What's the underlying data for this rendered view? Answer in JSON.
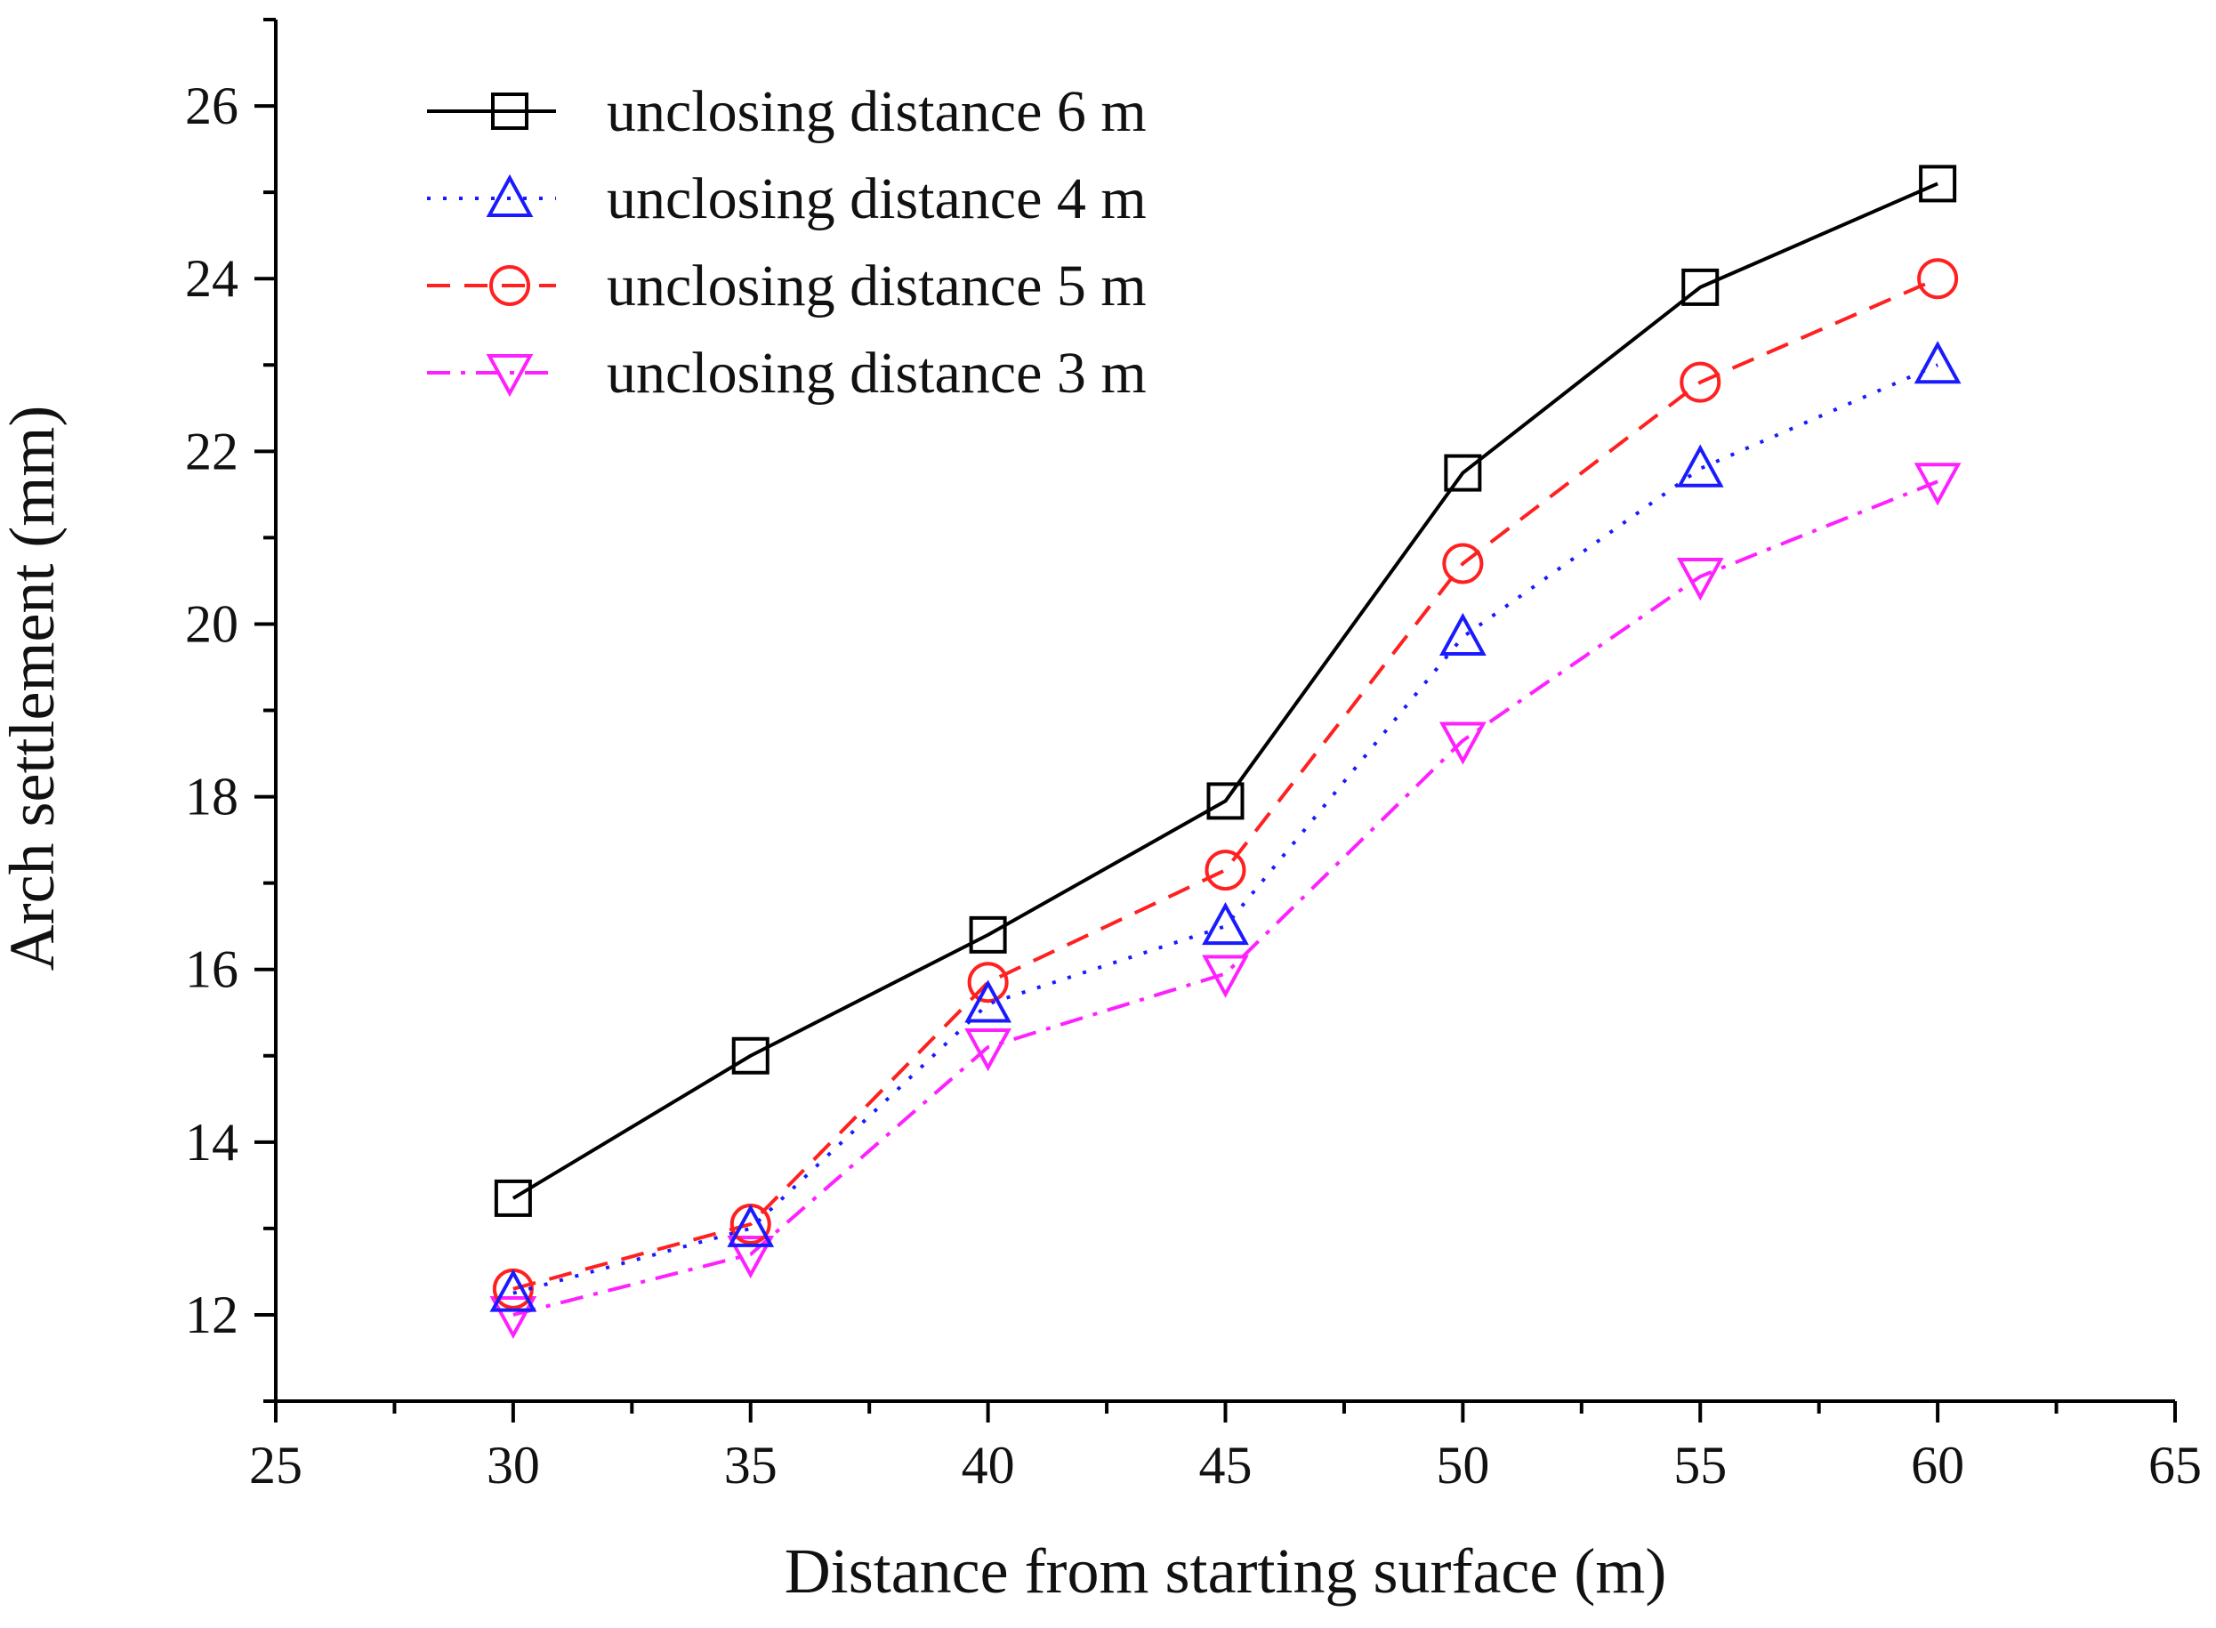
{
  "chart_data": {
    "type": "line",
    "title": "",
    "xlabel": "Distance from starting surface (m)",
    "ylabel": "Arch settlement (mm)",
    "xlim": [
      25,
      65
    ],
    "ylim": [
      11,
      27
    ],
    "xticks": [
      25,
      30,
      35,
      40,
      45,
      50,
      55,
      60,
      65
    ],
    "yticks": [
      12,
      14,
      16,
      18,
      20,
      22,
      24,
      26
    ],
    "grid": false,
    "legend_position": "top-left",
    "x": [
      30,
      35,
      40,
      45,
      50,
      55,
      60
    ],
    "series": [
      {
        "name": "unclosing distance 6 m",
        "color": "#000000",
        "dash": "solid",
        "marker": "square",
        "values": [
          13.35,
          15.0,
          16.4,
          17.95,
          21.75,
          23.9,
          25.1
        ]
      },
      {
        "name": "unclosing distance 4 m",
        "color": "#1a1aff",
        "dash": "dotted",
        "marker": "triangle-up",
        "values": [
          12.25,
          13.0,
          15.6,
          16.5,
          19.85,
          21.8,
          23.0
        ]
      },
      {
        "name": "unclosing distance 5 m",
        "color": "#ff2020",
        "dash": "dashed",
        "marker": "circle",
        "values": [
          12.3,
          13.05,
          15.85,
          17.15,
          20.7,
          22.8,
          24.0
        ]
      },
      {
        "name": "unclosing distance 3 m",
        "color": "#ff20ff",
        "dash": "dash-dot",
        "marker": "triangle-down",
        "values": [
          12.0,
          12.7,
          15.1,
          15.95,
          18.65,
          20.55,
          21.65
        ]
      }
    ]
  }
}
